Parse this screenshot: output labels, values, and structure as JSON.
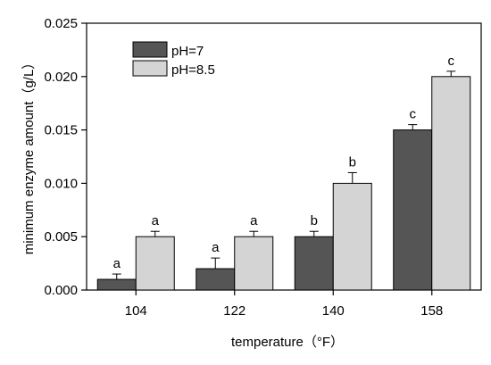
{
  "chart_data": {
    "type": "bar",
    "title": "",
    "xlabel": "temperature（°F）",
    "ylabel": "minimum enzyme amount（g/L）",
    "categories": [
      "104",
      "122",
      "140",
      "158"
    ],
    "ylim": [
      0,
      0.025
    ],
    "yticks": [
      "0.000",
      "0.005",
      "0.010",
      "0.015",
      "0.020",
      "0.025"
    ],
    "grid": false,
    "legend_position": "top-left",
    "series": [
      {
        "name": "pH=7",
        "color": "#555555",
        "values": [
          0.001,
          0.002,
          0.005,
          0.015
        ],
        "errors": [
          0.0005,
          0.001,
          0.0005,
          0.0005
        ],
        "labels": [
          "a",
          "a",
          "b",
          "c"
        ]
      },
      {
        "name": "pH=8.5",
        "color": "#d4d4d4",
        "values": [
          0.005,
          0.005,
          0.01,
          0.02
        ],
        "errors": [
          0.0005,
          0.0005,
          0.001,
          0.0005
        ],
        "labels": [
          "a",
          "a",
          "b",
          "c"
        ]
      }
    ]
  }
}
